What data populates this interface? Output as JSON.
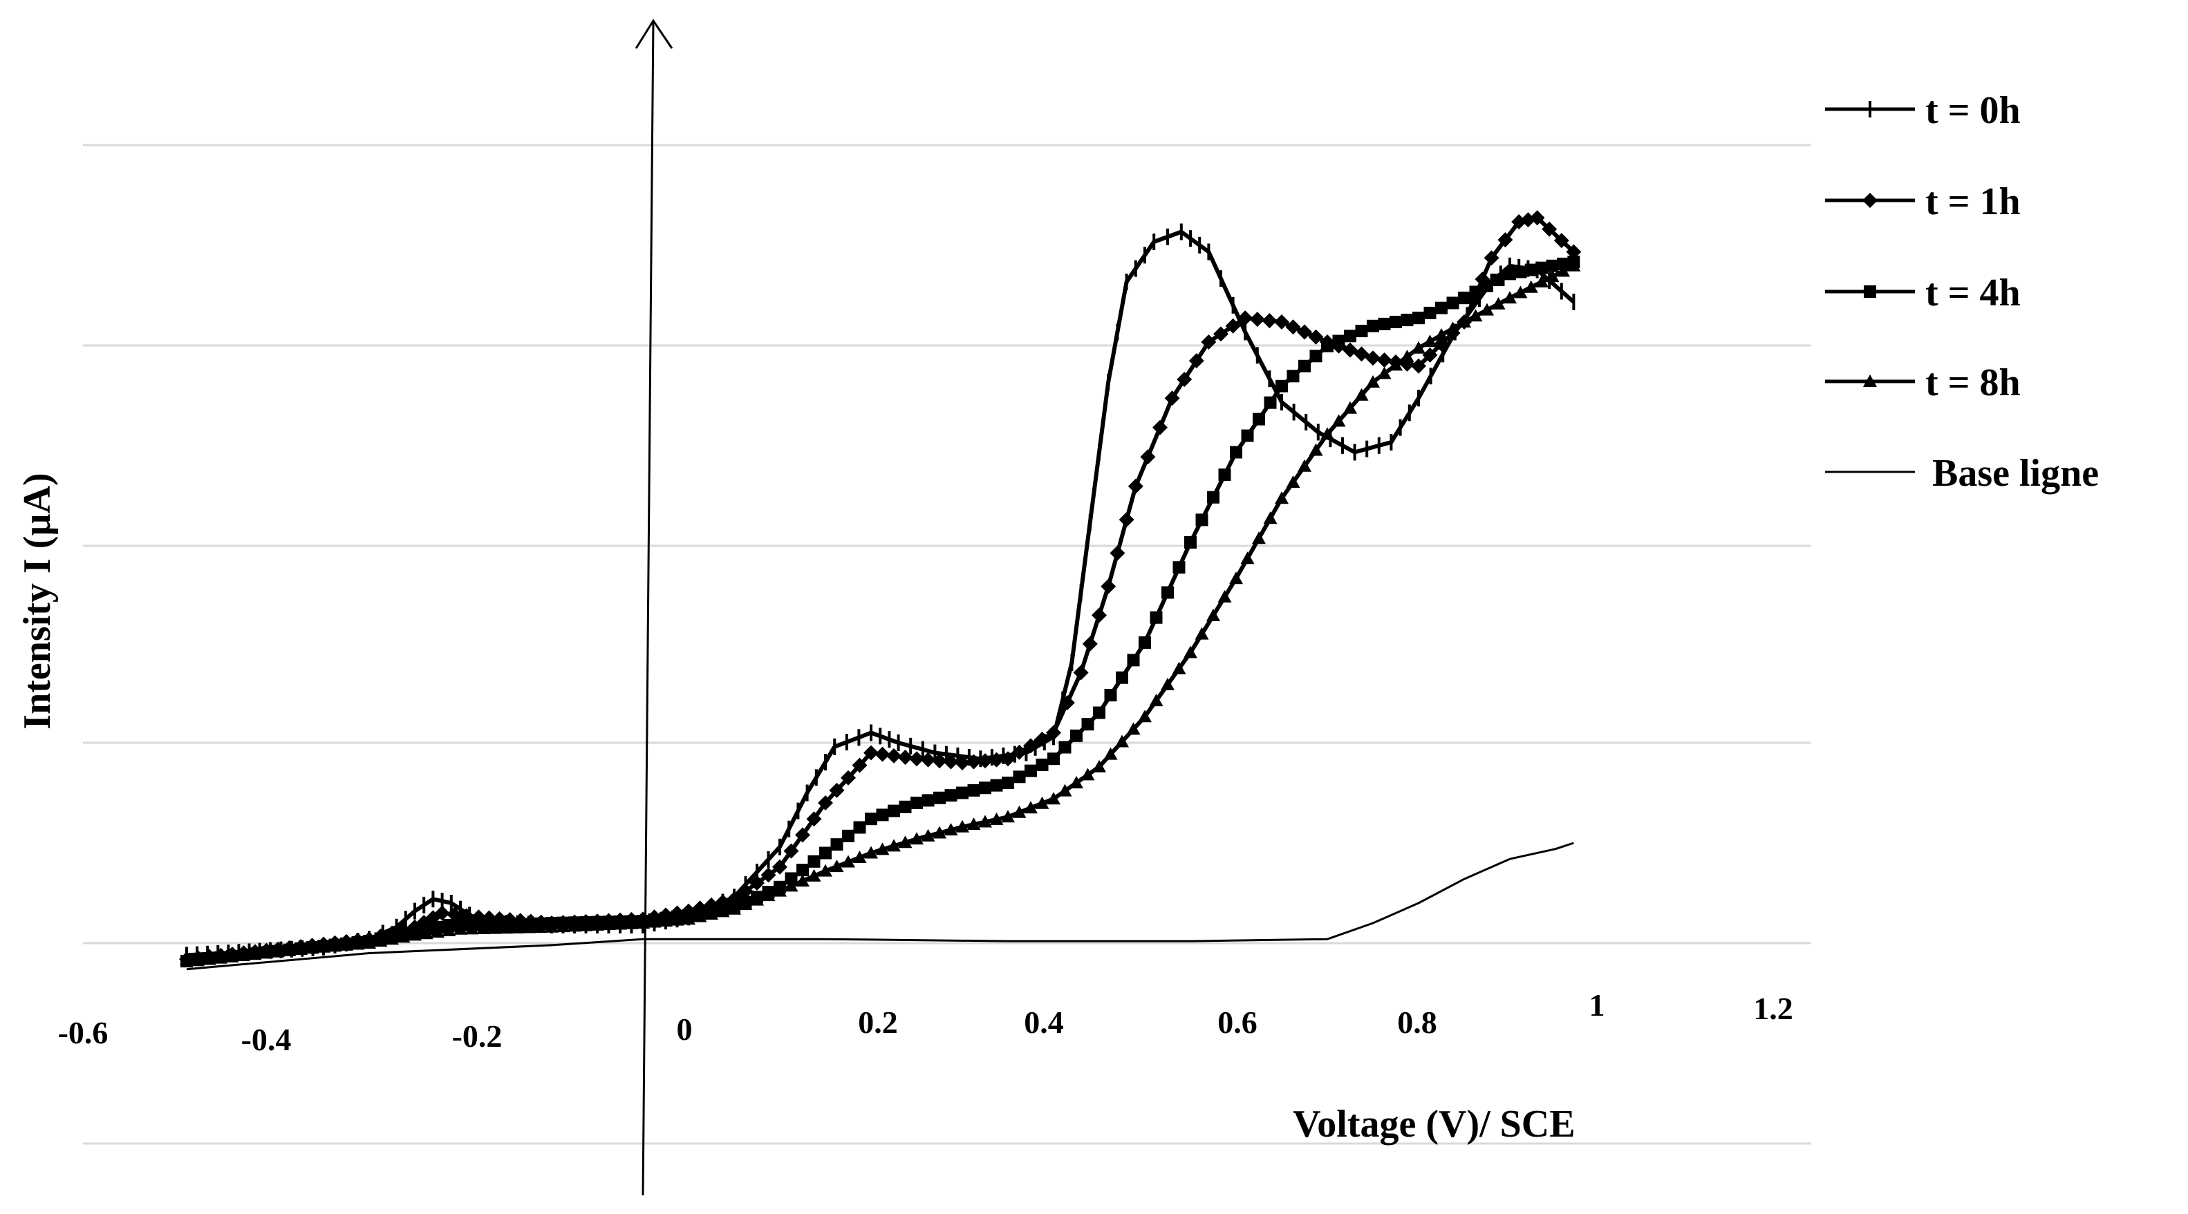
{
  "chart_data": {
    "type": "line",
    "title": "",
    "xlabel": "Voltage (V)/ SCE",
    "ylabel": "Intensity I (µA)",
    "xlim": [
      -0.6,
      1.2
    ],
    "x_ticks": [
      "-0.6",
      "-0.4",
      "-0.2",
      "0",
      "0.2",
      "0.4",
      "0.6",
      "0.8",
      "1",
      "1.2"
    ],
    "y_ticks_shown": false,
    "grid": "horizontal",
    "legend_position": "right",
    "series": [
      {
        "name": "t = 0h",
        "marker": "dash",
        "points": [
          [
            -0.5,
            -0.06
          ],
          [
            -0.42,
            -0.04
          ],
          [
            -0.35,
            -0.02
          ],
          [
            -0.3,
            0.02
          ],
          [
            -0.27,
            0.08
          ],
          [
            -0.25,
            0.16
          ],
          [
            -0.23,
            0.22
          ],
          [
            -0.21,
            0.2
          ],
          [
            -0.19,
            0.14
          ],
          [
            -0.17,
            0.1
          ],
          [
            -0.15,
            0.1
          ],
          [
            -0.1,
            0.09
          ],
          [
            -0.05,
            0.09
          ],
          [
            0,
            0.09
          ],
          [
            0.05,
            0.13
          ],
          [
            0.1,
            0.23
          ],
          [
            0.15,
            0.48
          ],
          [
            0.18,
            0.75
          ],
          [
            0.21,
            0.98
          ],
          [
            0.25,
            1.05
          ],
          [
            0.28,
            1.0
          ],
          [
            0.32,
            0.95
          ],
          [
            0.37,
            0.92
          ],
          [
            0.42,
            0.95
          ],
          [
            0.45,
            1.03
          ],
          [
            0.47,
            1.4
          ],
          [
            0.49,
            2.1
          ],
          [
            0.51,
            2.8
          ],
          [
            0.53,
            3.3
          ],
          [
            0.56,
            3.5
          ],
          [
            0.59,
            3.55
          ],
          [
            0.62,
            3.45
          ],
          [
            0.66,
            3.05
          ],
          [
            0.7,
            2.7
          ],
          [
            0.74,
            2.55
          ],
          [
            0.78,
            2.45
          ],
          [
            0.82,
            2.5
          ],
          [
            0.85,
            2.72
          ],
          [
            0.89,
            3.05
          ],
          [
            0.93,
            3.3
          ],
          [
            0.95,
            3.38
          ],
          [
            0.98,
            3.36
          ],
          [
            1.02,
            3.2
          ]
        ]
      },
      {
        "name": "t = 1h",
        "marker": "diamond",
        "points": [
          [
            -0.5,
            -0.08
          ],
          [
            -0.4,
            -0.03
          ],
          [
            -0.3,
            0.02
          ],
          [
            -0.25,
            0.08
          ],
          [
            -0.22,
            0.15
          ],
          [
            -0.18,
            0.13
          ],
          [
            -0.1,
            0.1
          ],
          [
            0,
            0.12
          ],
          [
            0.05,
            0.16
          ],
          [
            0.1,
            0.22
          ],
          [
            0.15,
            0.38
          ],
          [
            0.2,
            0.7
          ],
          [
            0.25,
            0.95
          ],
          [
            0.3,
            0.92
          ],
          [
            0.35,
            0.9
          ],
          [
            0.4,
            0.92
          ],
          [
            0.45,
            1.05
          ],
          [
            0.48,
            1.35
          ],
          [
            0.51,
            1.78
          ],
          [
            0.54,
            2.28
          ],
          [
            0.58,
            2.72
          ],
          [
            0.62,
            3.0
          ],
          [
            0.66,
            3.12
          ],
          [
            0.7,
            3.1
          ],
          [
            0.75,
            3.0
          ],
          [
            0.8,
            2.92
          ],
          [
            0.85,
            2.88
          ],
          [
            0.9,
            3.1
          ],
          [
            0.93,
            3.42
          ],
          [
            0.96,
            3.6
          ],
          [
            0.98,
            3.62
          ],
          [
            1.02,
            3.45
          ]
        ]
      },
      {
        "name": "t = 4h",
        "marker": "square",
        "points": [
          [
            -0.5,
            -0.09
          ],
          [
            -0.4,
            -0.04
          ],
          [
            -0.3,
            0.01
          ],
          [
            -0.25,
            0.06
          ],
          [
            -0.2,
            0.1
          ],
          [
            -0.15,
            0.09
          ],
          [
            -0.1,
            0.1
          ],
          [
            0,
            0.11
          ],
          [
            0.05,
            0.14
          ],
          [
            0.1,
            0.18
          ],
          [
            0.15,
            0.28
          ],
          [
            0.2,
            0.45
          ],
          [
            0.25,
            0.62
          ],
          [
            0.3,
            0.7
          ],
          [
            0.35,
            0.75
          ],
          [
            0.4,
            0.8
          ],
          [
            0.45,
            0.92
          ],
          [
            0.5,
            1.15
          ],
          [
            0.55,
            1.5
          ],
          [
            0.6,
            2.0
          ],
          [
            0.65,
            2.45
          ],
          [
            0.7,
            2.78
          ],
          [
            0.75,
            2.98
          ],
          [
            0.8,
            3.08
          ],
          [
            0.85,
            3.12
          ],
          [
            0.9,
            3.22
          ],
          [
            0.95,
            3.34
          ],
          [
            1.02,
            3.4
          ]
        ]
      },
      {
        "name": "t = 8h",
        "marker": "triangle",
        "points": [
          [
            -0.5,
            -0.08
          ],
          [
            -0.4,
            -0.04
          ],
          [
            -0.3,
            0.0
          ],
          [
            -0.25,
            0.04
          ],
          [
            -0.2,
            0.07
          ],
          [
            -0.1,
            0.08
          ],
          [
            0,
            0.1
          ],
          [
            0.05,
            0.12
          ],
          [
            0.1,
            0.17
          ],
          [
            0.15,
            0.26
          ],
          [
            0.2,
            0.36
          ],
          [
            0.25,
            0.45
          ],
          [
            0.3,
            0.52
          ],
          [
            0.35,
            0.58
          ],
          [
            0.4,
            0.63
          ],
          [
            0.45,
            0.72
          ],
          [
            0.5,
            0.88
          ],
          [
            0.55,
            1.13
          ],
          [
            0.6,
            1.45
          ],
          [
            0.65,
            1.82
          ],
          [
            0.7,
            2.22
          ],
          [
            0.75,
            2.54
          ],
          [
            0.8,
            2.8
          ],
          [
            0.85,
            2.97
          ],
          [
            0.9,
            3.1
          ],
          [
            0.95,
            3.22
          ],
          [
            1.02,
            3.38
          ]
        ]
      },
      {
        "name": "Base ligne",
        "marker": "none",
        "points": [
          [
            -0.5,
            -0.13
          ],
          [
            -0.3,
            -0.05
          ],
          [
            -0.1,
            -0.01
          ],
          [
            0,
            0.02
          ],
          [
            0.2,
            0.02
          ],
          [
            0.4,
            0.01
          ],
          [
            0.6,
            0.01
          ],
          [
            0.75,
            0.02
          ],
          [
            0.8,
            0.1
          ],
          [
            0.85,
            0.2
          ],
          [
            0.9,
            0.32
          ],
          [
            0.95,
            0.42
          ],
          [
            1.0,
            0.47
          ],
          [
            1.02,
            0.5
          ]
        ]
      }
    ]
  }
}
